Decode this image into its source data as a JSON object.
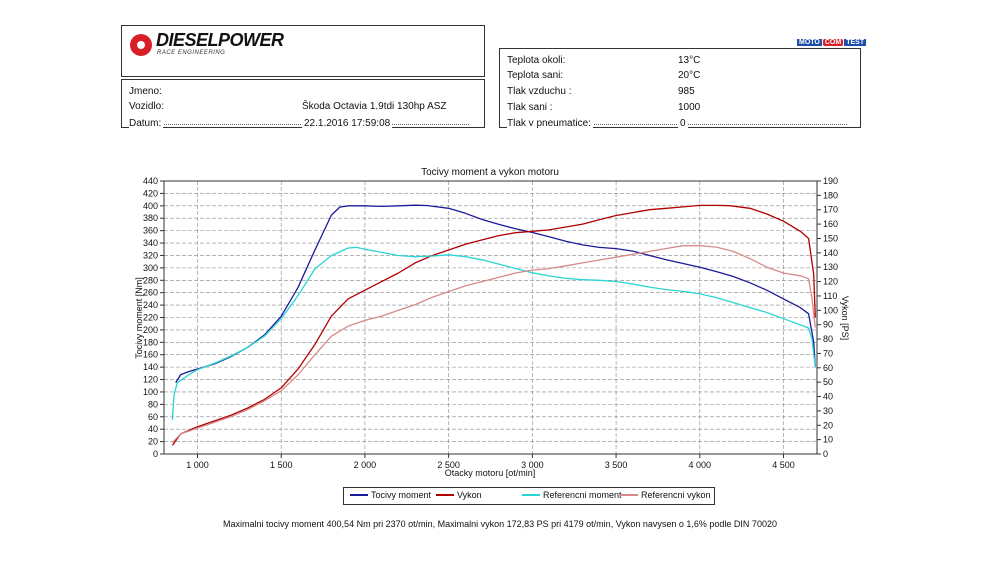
{
  "header": {
    "logo_text": "DIESELPOWER",
    "logo_sub": "RACE ENGINEERING",
    "badge": [
      "MOTO",
      "COM",
      "TEST"
    ]
  },
  "vehicle": {
    "rows": [
      {
        "label": "Jmeno:",
        "value": ""
      },
      {
        "label": "Vozidlo:",
        "value": "Škoda Octavia 1.9tdi 130hp ASZ"
      },
      {
        "label": "Datum:",
        "value": "22.1.2016 17:59:08"
      }
    ]
  },
  "conditions": {
    "rows": [
      {
        "label": "Teplota okoli:",
        "value": "13°C"
      },
      {
        "label": "Teplota sani:",
        "value": "20°C"
      },
      {
        "label": "Tlak vzduchu :",
        "value": "985"
      },
      {
        "label": "Tlak sani :",
        "value": "1000"
      },
      {
        "label": "Tlak v pneumatice:",
        "value": "0"
      }
    ]
  },
  "chart_data": {
    "type": "line",
    "title": "Tocivy moment a vykon motoru",
    "xlabel": "Otacky motoru [ot/min]",
    "ylabel": "Tocivy moment [Nm]",
    "y2label": "Vykon [PS]",
    "xlim": [
      800,
      4700
    ],
    "ylim": [
      0,
      440
    ],
    "y2lim": [
      0,
      190
    ],
    "x_ticks": [
      1000,
      1500,
      2000,
      2500,
      3000,
      3500,
      4000,
      4500
    ],
    "x_tick_labels": [
      "1 000",
      "1 500",
      "2 000",
      "2 500",
      "3 000",
      "3 500",
      "4 000",
      "4 500"
    ],
    "y_ticks": [
      0,
      20,
      40,
      60,
      80,
      100,
      120,
      140,
      160,
      180,
      200,
      220,
      240,
      260,
      280,
      300,
      320,
      340,
      360,
      380,
      400,
      420,
      440
    ],
    "y2_ticks": [
      0,
      10,
      20,
      30,
      40,
      50,
      60,
      70,
      80,
      90,
      100,
      110,
      120,
      130,
      140,
      150,
      160,
      170,
      180,
      190
    ],
    "grid": true,
    "legend_position": "bottom",
    "series": [
      {
        "name": "Tocivy moment",
        "axis": "left",
        "color": "#1a1a9c",
        "points": [
          [
            870,
            115
          ],
          [
            900,
            128
          ],
          [
            950,
            133
          ],
          [
            1000,
            137
          ],
          [
            1100,
            145
          ],
          [
            1200,
            157
          ],
          [
            1300,
            172
          ],
          [
            1400,
            192
          ],
          [
            1500,
            222
          ],
          [
            1600,
            268
          ],
          [
            1700,
            328
          ],
          [
            1800,
            385
          ],
          [
            1850,
            398
          ],
          [
            1900,
            400
          ],
          [
            2000,
            400
          ],
          [
            2100,
            399
          ],
          [
            2200,
            400
          ],
          [
            2300,
            401
          ],
          [
            2370,
            400.5
          ],
          [
            2500,
            396
          ],
          [
            2600,
            388
          ],
          [
            2700,
            378
          ],
          [
            2800,
            370
          ],
          [
            2900,
            363
          ],
          [
            3000,
            357
          ],
          [
            3100,
            350
          ],
          [
            3200,
            343
          ],
          [
            3300,
            337
          ],
          [
            3400,
            333
          ],
          [
            3500,
            331
          ],
          [
            3600,
            327
          ],
          [
            3700,
            320
          ],
          [
            3800,
            313
          ],
          [
            3900,
            307
          ],
          [
            4000,
            301
          ],
          [
            4100,
            294
          ],
          [
            4200,
            286
          ],
          [
            4300,
            276
          ],
          [
            4400,
            264
          ],
          [
            4500,
            250
          ],
          [
            4600,
            236
          ],
          [
            4650,
            226
          ],
          [
            4680,
            180
          ],
          [
            4690,
            140
          ]
        ]
      },
      {
        "name": "Vykon",
        "axis": "right",
        "color": "#b00000",
        "points": [
          [
            850,
            6
          ],
          [
            900,
            14
          ],
          [
            1000,
            19
          ],
          [
            1100,
            23
          ],
          [
            1200,
            27
          ],
          [
            1300,
            32
          ],
          [
            1400,
            38
          ],
          [
            1500,
            46
          ],
          [
            1600,
            59
          ],
          [
            1700,
            76
          ],
          [
            1800,
            96
          ],
          [
            1900,
            108
          ],
          [
            2000,
            114
          ],
          [
            2100,
            120
          ],
          [
            2200,
            126
          ],
          [
            2300,
            133
          ],
          [
            2400,
            138
          ],
          [
            2500,
            142
          ],
          [
            2600,
            146
          ],
          [
            2700,
            149
          ],
          [
            2800,
            152
          ],
          [
            2900,
            154
          ],
          [
            3000,
            155
          ],
          [
            3100,
            156
          ],
          [
            3200,
            158
          ],
          [
            3300,
            160
          ],
          [
            3400,
            163
          ],
          [
            3500,
            166
          ],
          [
            3600,
            168
          ],
          [
            3700,
            170
          ],
          [
            3800,
            171
          ],
          [
            3900,
            172
          ],
          [
            4000,
            173
          ],
          [
            4100,
            173
          ],
          [
            4179,
            172.8
          ],
          [
            4300,
            171
          ],
          [
            4400,
            167
          ],
          [
            4500,
            162
          ],
          [
            4600,
            155
          ],
          [
            4650,
            150
          ],
          [
            4680,
            125
          ],
          [
            4690,
            95
          ]
        ]
      },
      {
        "name": "Referencni moment",
        "axis": "left",
        "color": "#2ad4d4",
        "points": [
          [
            850,
            55
          ],
          [
            860,
            95
          ],
          [
            880,
            115
          ],
          [
            950,
            128
          ],
          [
            1000,
            136
          ],
          [
            1100,
            146
          ],
          [
            1200,
            158
          ],
          [
            1300,
            172
          ],
          [
            1400,
            190
          ],
          [
            1500,
            218
          ],
          [
            1600,
            255
          ],
          [
            1700,
            298
          ],
          [
            1800,
            320
          ],
          [
            1900,
            332
          ],
          [
            1950,
            333
          ],
          [
            2000,
            330
          ],
          [
            2100,
            325
          ],
          [
            2200,
            320
          ],
          [
            2300,
            318
          ],
          [
            2400,
            319
          ],
          [
            2500,
            321
          ],
          [
            2600,
            318
          ],
          [
            2700,
            313
          ],
          [
            2800,
            306
          ],
          [
            2900,
            299
          ],
          [
            3000,
            292
          ],
          [
            3100,
            287
          ],
          [
            3200,
            283
          ],
          [
            3300,
            281
          ],
          [
            3400,
            280
          ],
          [
            3500,
            278
          ],
          [
            3600,
            274
          ],
          [
            3700,
            269
          ],
          [
            3800,
            265
          ],
          [
            3900,
            262
          ],
          [
            4000,
            258
          ],
          [
            4100,
            252
          ],
          [
            4200,
            244
          ],
          [
            4300,
            236
          ],
          [
            4400,
            228
          ],
          [
            4500,
            218
          ],
          [
            4600,
            208
          ],
          [
            4650,
            203
          ],
          [
            4670,
            185
          ],
          [
            4690,
            140
          ]
        ]
      },
      {
        "name": "Referencni vykon",
        "axis": "right",
        "color": "#d88a8a",
        "points": [
          [
            850,
            8
          ],
          [
            900,
            14
          ],
          [
            1000,
            18
          ],
          [
            1100,
            22
          ],
          [
            1200,
            26
          ],
          [
            1300,
            31
          ],
          [
            1400,
            37
          ],
          [
            1500,
            44
          ],
          [
            1600,
            55
          ],
          [
            1700,
            69
          ],
          [
            1800,
            82
          ],
          [
            1900,
            89
          ],
          [
            2000,
            93
          ],
          [
            2100,
            96
          ],
          [
            2200,
            100
          ],
          [
            2300,
            104
          ],
          [
            2400,
            109
          ],
          [
            2500,
            113
          ],
          [
            2600,
            117
          ],
          [
            2700,
            120
          ],
          [
            2800,
            123
          ],
          [
            2900,
            126
          ],
          [
            3000,
            128
          ],
          [
            3100,
            129
          ],
          [
            3200,
            131
          ],
          [
            3300,
            133
          ],
          [
            3400,
            135
          ],
          [
            3500,
            137
          ],
          [
            3600,
            139
          ],
          [
            3700,
            141
          ],
          [
            3800,
            143
          ],
          [
            3900,
            145
          ],
          [
            4000,
            145
          ],
          [
            4100,
            144
          ],
          [
            4200,
            141
          ],
          [
            4300,
            136
          ],
          [
            4400,
            130
          ],
          [
            4500,
            126
          ],
          [
            4600,
            124
          ],
          [
            4650,
            122
          ],
          [
            4670,
            108
          ],
          [
            4690,
            88
          ]
        ]
      }
    ]
  },
  "footer": {
    "text": "Maximalni tocivy moment 400,54 Nm pri 2370 ot/min,  Maximalni vykon 172,83 PS pri 4179 ot/min,  Vykon navysen o 1,6% podle DIN 70020"
  }
}
